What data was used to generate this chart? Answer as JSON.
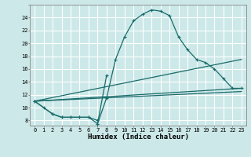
{
  "background_color": "#cce8e8",
  "grid_color": "#ffffff",
  "line_color": "#1a6b6b",
  "main_curve": {
    "x": [
      0,
      2,
      3,
      4,
      5,
      6,
      7,
      8,
      9,
      10,
      11,
      12,
      13,
      14,
      15,
      16,
      17,
      18,
      19,
      20,
      21,
      22,
      23
    ],
    "y": [
      11,
      9,
      8.5,
      8.5,
      8.5,
      8.5,
      7.5,
      11.5,
      17.5,
      21,
      23.5,
      24.5,
      25.2,
      25.0,
      24.3,
      21,
      19,
      17.5,
      17,
      16,
      14.5,
      13,
      13
    ]
  },
  "short_spike": {
    "x": [
      7,
      8
    ],
    "y": [
      7.5,
      15
    ]
  },
  "low_series": {
    "x": [
      0,
      1,
      2,
      3,
      4,
      5,
      6,
      7
    ],
    "y": [
      11,
      10,
      9,
      8.5,
      8.5,
      8.5,
      8.5,
      8
    ]
  },
  "trend_line1": {
    "x": [
      0,
      23
    ],
    "y": [
      11,
      17.5
    ]
  },
  "trend_line2": {
    "x": [
      0,
      23
    ],
    "y": [
      11,
      13
    ]
  },
  "trend_line3": {
    "x": [
      0,
      23
    ],
    "y": [
      11,
      12.5
    ]
  },
  "xlim": [
    -0.5,
    23.5
  ],
  "ylim": [
    7.2,
    26.0
  ],
  "yticks": [
    8,
    10,
    12,
    14,
    16,
    18,
    20,
    22,
    24
  ],
  "xticks": [
    0,
    1,
    2,
    3,
    4,
    5,
    6,
    7,
    8,
    9,
    10,
    11,
    12,
    13,
    14,
    15,
    16,
    17,
    18,
    19,
    20,
    21,
    22,
    23
  ],
  "xlabel": "Humidex (Indice chaleur)",
  "xlabel_fontsize": 6.5,
  "tick_fontsize": 5.0,
  "figsize": [
    3.2,
    2.0
  ],
  "dpi": 100
}
